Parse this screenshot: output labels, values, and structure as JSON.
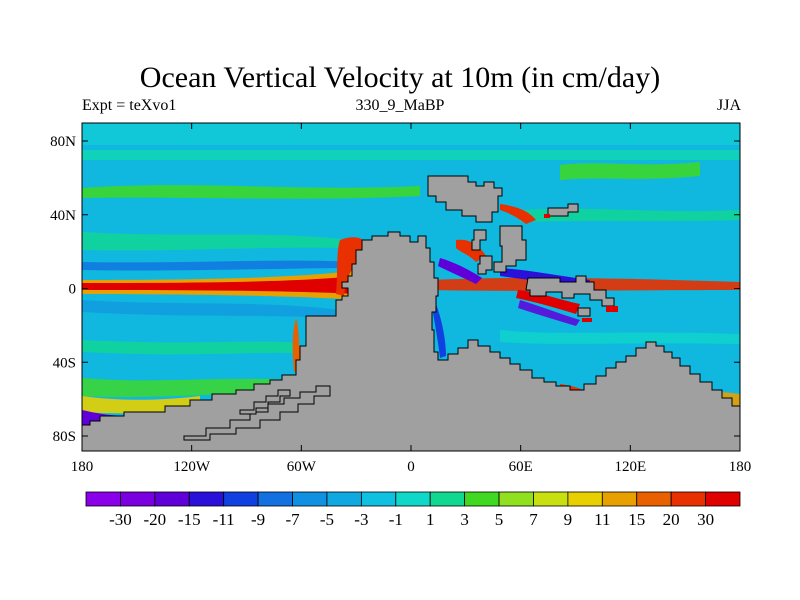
{
  "chart_data": {
    "type": "heatmap",
    "title": "Ocean Vertical Velocity at 10m (in cm/day)",
    "left_string": "Expt = teXvo1",
    "center_string": "330_9_MaBP",
    "right_string": "JJA",
    "x_ticks": [
      "180",
      "120W",
      "60W",
      "0",
      "60E",
      "120E",
      "180"
    ],
    "y_ticks": [
      "80N",
      "40N",
      "0",
      "40S",
      "80S"
    ],
    "xlim": [
      -180,
      180
    ],
    "ylim": [
      -90,
      90
    ],
    "colorbar_labels": [
      "-30",
      "-20",
      "-15",
      "-11",
      "-9",
      "-7",
      "-5",
      "-3",
      "-1",
      "1",
      "3",
      "5",
      "7",
      "9",
      "11",
      "15",
      "20",
      "30"
    ],
    "colorbar_colors": [
      "#8a00e8",
      "#7a00e0",
      "#6000d8",
      "#2a10d8",
      "#1040e0",
      "#1270e0",
      "#1090e0",
      "#10a8e0",
      "#10c0e0",
      "#10d8c8",
      "#10d890",
      "#40d820",
      "#90e020",
      "#c8e010",
      "#e8d000",
      "#e8a000",
      "#e86000",
      "#e83000",
      "#e00000"
    ],
    "land_color": "#a0a0a0"
  }
}
